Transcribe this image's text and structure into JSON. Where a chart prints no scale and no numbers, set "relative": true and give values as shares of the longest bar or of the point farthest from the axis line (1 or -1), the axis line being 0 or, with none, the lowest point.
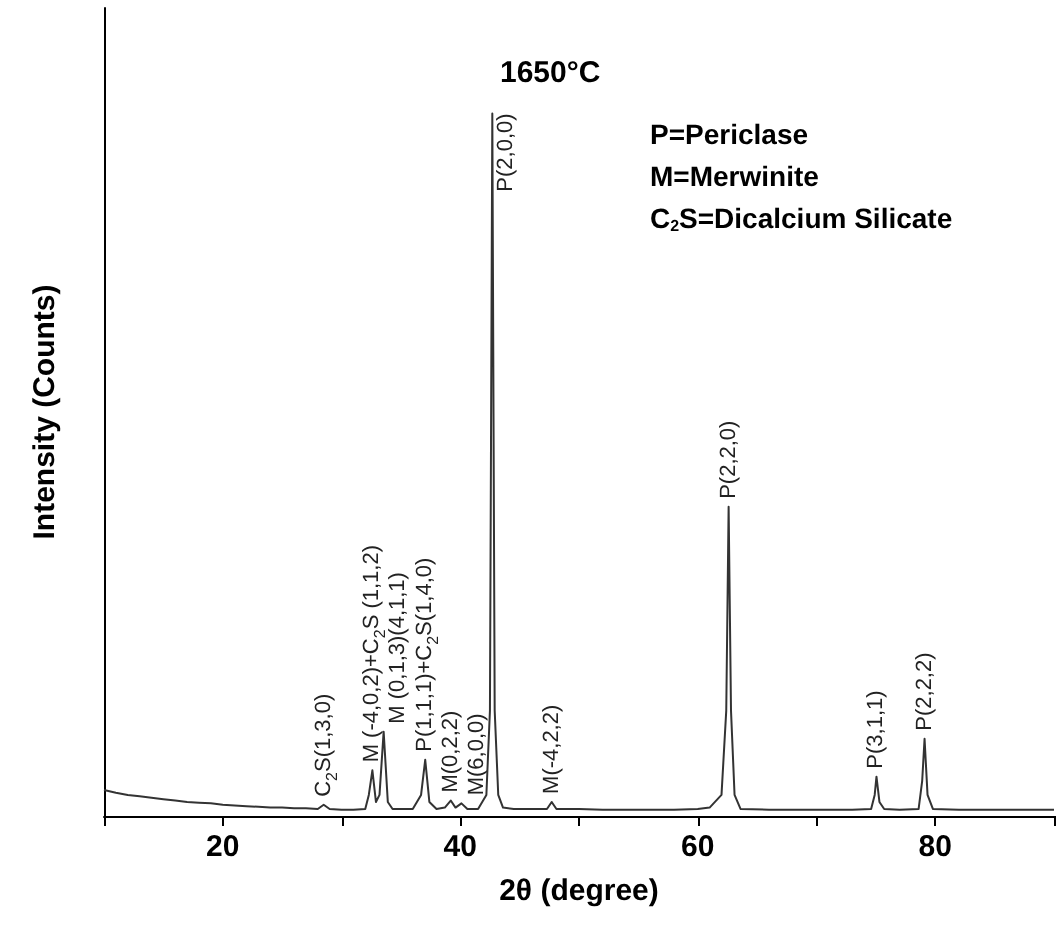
{
  "chart_data": {
    "type": "line",
    "title": "1650°C",
    "xlabel": "2θ (degree)",
    "ylabel": "Intensity (Counts)",
    "relative": true,
    "marker": "none",
    "xlim": [
      10,
      90
    ],
    "xticks": [
      {
        "value": 10,
        "label": null
      },
      20,
      {
        "value": 30,
        "label": null
      },
      40,
      {
        "value": 50,
        "label": null
      },
      60,
      {
        "value": 70,
        "label": null
      },
      80,
      {
        "value": 90,
        "label": null
      }
    ],
    "x": [
      10,
      11,
      12,
      13,
      14,
      15,
      16,
      17,
      18,
      19,
      20,
      21,
      22,
      23,
      24,
      25,
      26,
      27,
      28,
      28.5,
      29,
      30,
      31,
      32,
      32.3,
      32.6,
      32.9,
      33.2,
      33.55,
      33.9,
      34.3,
      35,
      36,
      36.7,
      37.05,
      37.4,
      38,
      38.7,
      39.2,
      39.6,
      40.1,
      40.6,
      41.5,
      42.2,
      42.5,
      42.7,
      42.9,
      43.2,
      43.6,
      44.5,
      46,
      47.3,
      47.7,
      48.1,
      50,
      52,
      55,
      58,
      60,
      61,
      62,
      62.4,
      62.6,
      62.8,
      63.1,
      63.6,
      66,
      70,
      73,
      74.6,
      74.9,
      75.05,
      75.3,
      75.7,
      77,
      78.6,
      78.9,
      79.1,
      79.35,
      79.8,
      82,
      86,
      90
    ],
    "series": [
      {
        "color": "#333333",
        "values": [
          0.037,
          0.033,
          0.03,
          0.028,
          0.026,
          0.024,
          0.022,
          0.02,
          0.019,
          0.018,
          0.016,
          0.015,
          0.014,
          0.013,
          0.012,
          0.012,
          0.011,
          0.011,
          0.01,
          0.016,
          0.01,
          0.009,
          0.009,
          0.01,
          0.03,
          0.065,
          0.02,
          0.03,
          0.12,
          0.02,
          0.01,
          0.01,
          0.01,
          0.03,
          0.08,
          0.02,
          0.01,
          0.012,
          0.022,
          0.012,
          0.018,
          0.01,
          0.01,
          0.03,
          0.15,
          1,
          0.15,
          0.03,
          0.012,
          0.01,
          0.01,
          0.01,
          0.02,
          0.01,
          0.01,
          0.009,
          0.009,
          0.009,
          0.01,
          0.012,
          0.03,
          0.15,
          0.44,
          0.15,
          0.03,
          0.01,
          0.009,
          0.009,
          0.009,
          0.01,
          0.03,
          0.056,
          0.02,
          0.01,
          0.009,
          0.01,
          0.05,
          0.11,
          0.03,
          0.01,
          0.009,
          0.009,
          0.009
        ]
      }
    ],
    "annotations": [
      {
        "text": "C$_{2}$S(1,3,0)",
        "x": 28.5,
        "y": 0.016
      },
      {
        "text": "M (-4,0,2)+C$_{2}$S (1,1,2)",
        "x": 32.6,
        "y": 0.065
      },
      {
        "text": "M (0,1,3)(4,1,1)",
        "x": 33.55,
        "y": 0.12
      },
      {
        "text": "P(1,1,1)+C$_{2}$S(1,4,0)",
        "x": 37.05,
        "y": 0.08
      },
      {
        "text": "M(0,2,2)",
        "x": 39.2,
        "y": 0.022
      },
      {
        "text": "M(6,0,0)",
        "x": 40.1,
        "y": 0.018
      },
      {
        "text": "P(2,0,0)",
        "x": 42.7,
        "y": 1
      },
      {
        "text": "M(-4,2,2)",
        "x": 47.7,
        "y": 0.02
      },
      {
        "text": "P(2,2,0)",
        "x": 62.6,
        "y": 0.44
      },
      {
        "text": "P(3,1,1)",
        "x": 75.05,
        "y": 0.056
      },
      {
        "text": "P(2,2,2)",
        "x": 79.1,
        "y": 0.11
      },
      "P=Periclase",
      "M=Merwinite",
      "C$_{2}$S=Dicalcium Silicate"
    ]
  }
}
